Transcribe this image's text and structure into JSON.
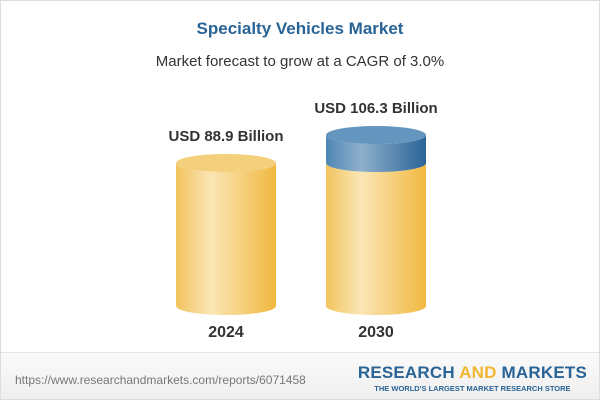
{
  "chart_data": {
    "type": "bar",
    "style": "3d-cylinder",
    "title": "Specialty Vehicles Market",
    "subtitle": "Market forecast to grow at a CAGR of 3.0%",
    "categories": [
      "2024",
      "2030"
    ],
    "values": [
      88.9,
      106.3
    ],
    "data_labels": [
      "USD 88.9 Billion",
      "USD 106.3 Billion"
    ],
    "unit": "USD Billion",
    "colors": {
      "base": "#f3c355",
      "growth": "#3f7aab",
      "title": "#2a6496"
    }
  },
  "footer": {
    "url": "https://www.researchandmarkets.com/reports/6071458",
    "logo_word1": "RESEARCH",
    "logo_word2": "AND",
    "logo_word3": "MARKETS",
    "logo_tagline": "THE WORLD'S LARGEST MARKET RESEARCH STORE"
  }
}
